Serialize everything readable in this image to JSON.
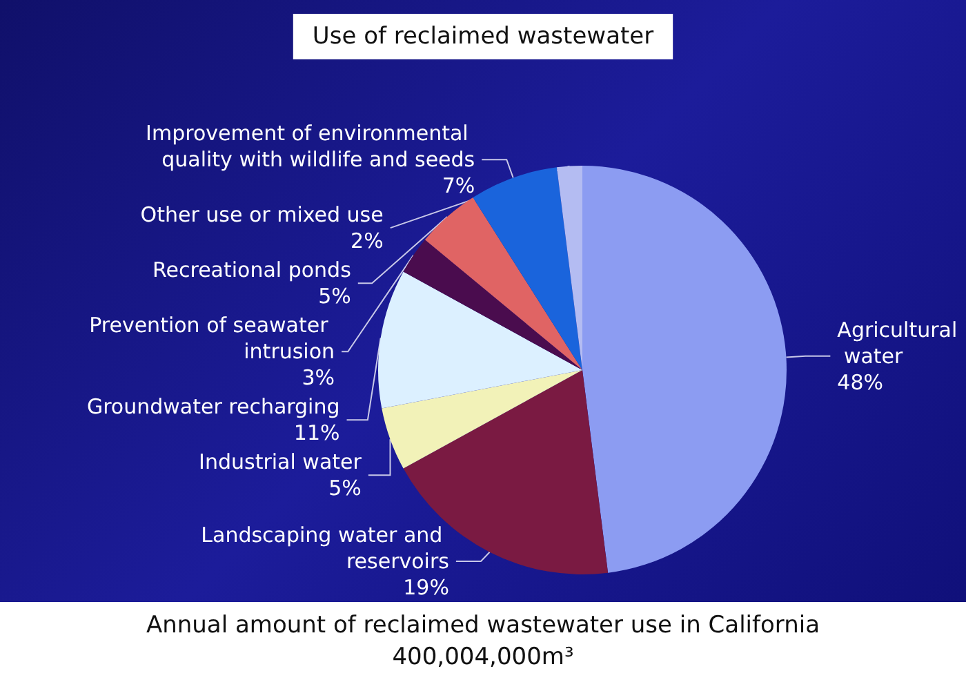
{
  "chart_data": {
    "type": "pie",
    "title": "Use of reclaimed wastewater",
    "categories": [
      "Agricultural water",
      "Landscaping water and reservoirs",
      "Industrial water",
      "Groundwater recharging",
      "Prevention of seawater intrusion",
      "Recreational ponds",
      "Improvement of environmental quality with wildlife and seeds",
      "Other use or mixed use"
    ],
    "values": [
      48,
      19,
      5,
      11,
      3,
      5,
      7,
      2
    ],
    "value_labels": [
      "48%",
      "19%",
      "5%",
      "11%",
      "3%",
      "5%",
      "7%",
      "2%"
    ],
    "colors": [
      "#8c9cf2",
      "#7a1a42",
      "#f2f2b8",
      "#dcf0ff",
      "#4a0c4e",
      "#e06464",
      "#1a64dc",
      "#b4bcf2"
    ],
    "annotations": [
      "Annual amount of reclaimed wastewater use in California 400,004,000m³"
    ],
    "legend": false
  }
}
